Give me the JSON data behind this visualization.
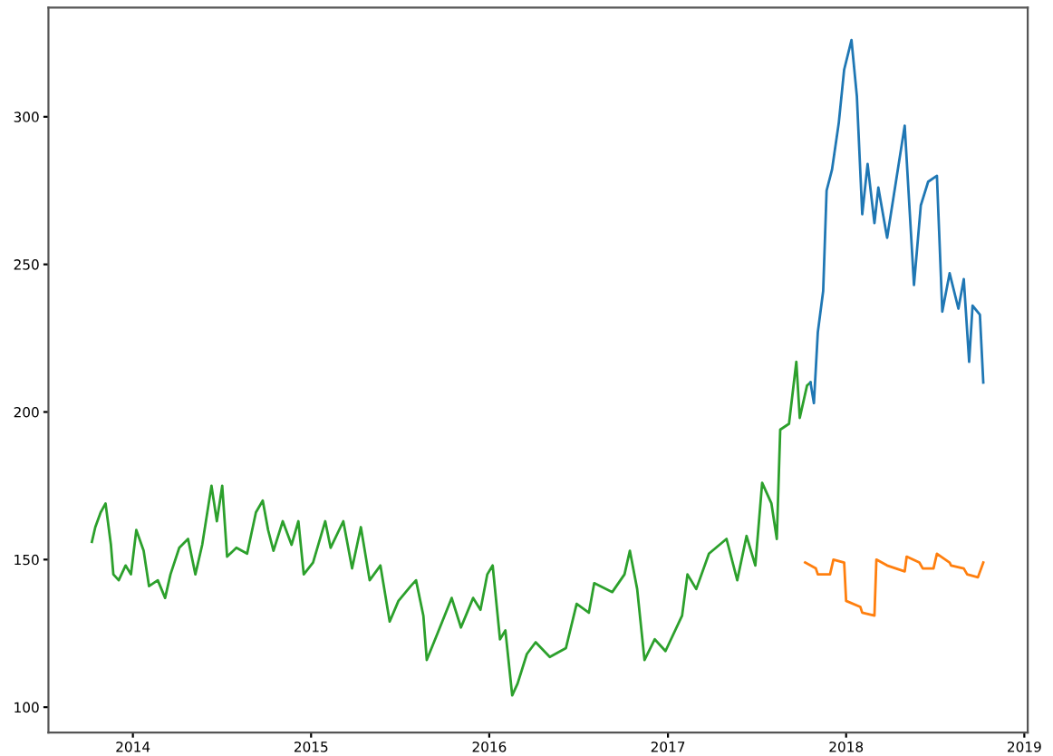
{
  "chart_data": {
    "type": "line",
    "xlim": [
      "2013-07-12",
      "2019-01-08"
    ],
    "ylim": [
      91.4,
      337
    ],
    "xticks": [
      {
        "value": "2014",
        "label": "2014"
      },
      {
        "value": "2015",
        "label": "2015"
      },
      {
        "value": "2016",
        "label": "2016"
      },
      {
        "value": "2017",
        "label": "2017"
      },
      {
        "value": "2018",
        "label": "2018"
      },
      {
        "value": "2019",
        "label": "2019"
      }
    ],
    "yticks": [
      100,
      150,
      200,
      250,
      300
    ],
    "grid": false,
    "series": [
      {
        "color": "#2ca02c",
        "x": [
          "2013-10-09",
          "2013-10-16",
          "2013-10-27",
          "2013-11-06",
          "2013-11-17",
          "2013-11-22",
          "2013-12-03",
          "2013-12-17",
          "2013-12-28",
          "2014-01-08",
          "2014-01-23",
          "2014-02-03",
          "2014-02-21",
          "2014-03-08",
          "2014-03-19",
          "2014-04-06",
          "2014-04-24",
          "2014-05-09",
          "2014-05-23",
          "2014-06-11",
          "2014-06-22",
          "2014-07-03",
          "2014-07-13",
          "2014-08-01",
          "2014-08-23",
          "2014-09-10",
          "2014-09-24",
          "2014-10-05",
          "2014-10-16",
          "2014-11-04",
          "2014-11-22",
          "2014-12-06",
          "2014-12-17",
          "2015-01-05",
          "2015-01-30",
          "2015-02-10",
          "2015-03-08",
          "2015-03-26",
          "2015-04-13",
          "2015-05-01",
          "2015-05-23",
          "2015-06-11",
          "2015-06-29",
          "2015-07-24",
          "2015-08-04",
          "2015-08-19",
          "2015-08-26",
          "2015-09-17",
          "2015-10-16",
          "2015-11-04",
          "2015-11-29",
          "2015-12-14",
          "2015-12-28",
          "2016-01-08",
          "2016-01-23",
          "2016-02-03",
          "2016-02-17",
          "2016-02-28",
          "2016-03-18",
          "2016-04-05",
          "2016-05-04",
          "2016-06-06",
          "2016-06-28",
          "2016-07-23",
          "2016-08-03",
          "2016-09-09",
          "2016-10-04",
          "2016-10-15",
          "2016-10-30",
          "2016-11-14",
          "2016-12-05",
          "2016-12-27",
          "2017-01-30",
          "2017-02-10",
          "2017-02-28",
          "2017-03-26",
          "2017-05-01",
          "2017-05-23",
          "2017-06-11",
          "2017-06-29",
          "2017-07-13",
          "2017-08-01",
          "2017-08-12",
          "2017-08-19",
          "2017-09-06",
          "2017-09-21",
          "2017-09-28",
          "2017-10-13",
          "2017-10-20"
        ],
        "values": [
          156,
          161,
          166,
          169,
          155,
          145,
          143,
          148,
          145,
          160,
          153,
          141,
          143,
          137,
          145,
          154,
          157,
          145,
          155,
          175,
          163,
          175,
          151,
          154,
          152,
          166,
          170,
          160,
          153,
          163,
          155,
          163,
          145,
          149,
          163,
          154,
          163,
          147,
          161,
          143,
          148,
          129,
          136,
          141,
          143,
          131,
          116,
          125,
          137,
          127,
          137,
          133,
          145,
          148,
          123,
          126,
          104,
          108,
          118,
          122,
          117,
          120,
          135,
          132,
          142,
          139,
          145,
          153,
          140,
          116,
          123,
          119,
          131,
          145,
          140,
          152,
          157,
          143,
          158,
          148,
          176,
          169,
          157,
          194,
          196,
          217,
          198,
          209,
          210
        ]
      },
      {
        "color": "#1f77b4",
        "x": [
          "2017-10-20",
          "2017-10-27",
          "2017-11-04",
          "2017-11-15",
          "2017-11-22",
          "2017-12-03",
          "2017-12-17",
          "2017-12-28",
          "2018-01-12",
          "2018-01-23",
          "2018-02-03",
          "2018-02-14",
          "2018-02-28",
          "2018-03-08",
          "2018-03-26",
          "2018-04-13",
          "2018-05-01",
          "2018-05-20",
          "2018-06-03",
          "2018-06-18",
          "2018-07-06",
          "2018-07-17",
          "2018-08-01",
          "2018-08-19",
          "2018-08-30",
          "2018-09-10",
          "2018-09-17",
          "2018-10-02",
          "2018-10-09"
        ],
        "values": [
          210,
          203,
          227,
          241,
          275,
          282,
          298,
          316,
          326,
          307,
          267,
          284,
          264,
          276,
          259,
          278,
          297,
          243,
          270,
          278,
          280,
          234,
          247,
          235,
          245,
          217,
          236,
          233,
          210
        ]
      },
      {
        "color": "#ff7f0e",
        "x": [
          "2017-10-09",
          "2017-10-31",
          "2017-11-04",
          "2017-11-29",
          "2017-12-06",
          "2017-12-28",
          "2018-01-01",
          "2018-01-30",
          "2018-02-03",
          "2018-02-28",
          "2018-03-04",
          "2018-03-26",
          "2018-05-01",
          "2018-05-05",
          "2018-05-31",
          "2018-06-07",
          "2018-06-29",
          "2018-07-06",
          "2018-08-01",
          "2018-08-04",
          "2018-08-30",
          "2018-09-06",
          "2018-09-28",
          "2018-10-09"
        ],
        "values": [
          149,
          147,
          145,
          145,
          150,
          149,
          136,
          134,
          132,
          131,
          150,
          148,
          146,
          151,
          149,
          147,
          147,
          152,
          149,
          148,
          147,
          145,
          144,
          149
        ]
      }
    ]
  }
}
